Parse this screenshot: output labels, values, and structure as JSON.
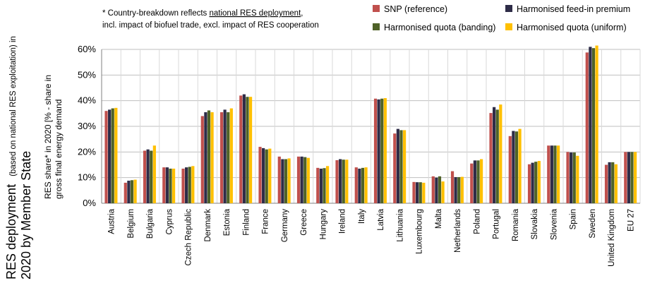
{
  "side_title": {
    "line1_main": "RES deployment",
    "line1_paren": "(based on national RES exploitation) in",
    "line2": "2020 by Member State"
  },
  "note": {
    "line1_prefix": "* Country-breakdown reflects ",
    "line1_underlined": "national RES deployment",
    "line1_suffix": ",",
    "line2": "incl. impact of biofuel trade, excl. impact of RES cooperation"
  },
  "chart_data": {
    "type": "bar",
    "ylabel_line1": "RES share* in 2020 [% - share in",
    "ylabel_line2": "gross final energy demand",
    "ylim": [
      0,
      0.6
    ],
    "yticks": [
      "0%",
      "10%",
      "20%",
      "30%",
      "40%",
      "50%",
      "60%"
    ],
    "grid": true,
    "legend_position": "top-right",
    "categories": [
      "Austria",
      "Belgium",
      "Bulgaria",
      "Cyprus",
      "Czech Republic",
      "Denmark",
      "Estonia",
      "Finland",
      "France",
      "Germany",
      "Greece",
      "Hungary",
      "Ireland",
      "Italy",
      "Latvia",
      "Lithuania",
      "Luxembourg",
      "Malta",
      "Netherlands",
      "Poland",
      "Portugal",
      "Romania",
      "Slovakia",
      "Slovenia",
      "Spain",
      "Sweden",
      "United Kingdom",
      "EU 27"
    ],
    "series": [
      {
        "name": "SNP (reference)",
        "color": "#c0504d",
        "values": [
          0.36,
          0.08,
          0.205,
          0.14,
          0.135,
          0.34,
          0.355,
          0.42,
          0.22,
          0.182,
          0.182,
          0.138,
          0.168,
          0.14,
          0.408,
          0.272,
          0.083,
          0.105,
          0.125,
          0.155,
          0.352,
          0.262,
          0.152,
          0.225,
          0.2,
          0.588,
          0.15,
          0.2
        ]
      },
      {
        "name": "Harmonised feed-in premium",
        "color": "#2e2c47",
        "values": [
          0.365,
          0.088,
          0.21,
          0.14,
          0.14,
          0.355,
          0.365,
          0.425,
          0.215,
          0.172,
          0.182,
          0.135,
          0.172,
          0.135,
          0.405,
          0.29,
          0.082,
          0.1,
          0.102,
          0.167,
          0.375,
          0.282,
          0.158,
          0.225,
          0.198,
          0.61,
          0.16,
          0.2
        ]
      },
      {
        "name": "Harmonised quota (banding)",
        "color": "#4f6228",
        "values": [
          0.37,
          0.09,
          0.205,
          0.135,
          0.142,
          0.362,
          0.355,
          0.415,
          0.21,
          0.172,
          0.18,
          0.137,
          0.17,
          0.138,
          0.408,
          0.285,
          0.082,
          0.105,
          0.102,
          0.167,
          0.365,
          0.28,
          0.162,
          0.225,
          0.198,
          0.605,
          0.16,
          0.2
        ]
      },
      {
        "name": "Harmonised quota (uniform)",
        "color": "#ffc000",
        "values": [
          0.372,
          0.092,
          0.225,
          0.135,
          0.145,
          0.355,
          0.37,
          0.415,
          0.213,
          0.175,
          0.177,
          0.145,
          0.17,
          0.14,
          0.41,
          0.285,
          0.08,
          0.085,
          0.103,
          0.172,
          0.385,
          0.29,
          0.165,
          0.225,
          0.185,
          0.615,
          0.152,
          0.2
        ]
      }
    ]
  }
}
